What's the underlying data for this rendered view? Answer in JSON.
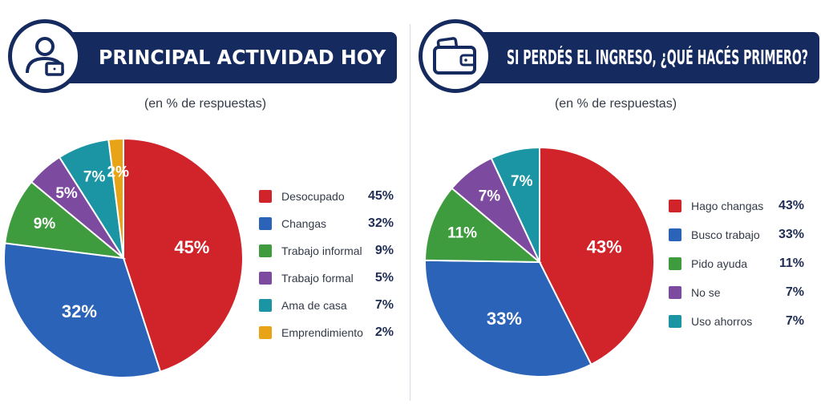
{
  "chart_data": [
    {
      "type": "pie",
      "title": "PRINCIPAL ACTIVIDAD HOY",
      "subtitle": "(en % de respuestas)",
      "icon": "person-laptop-icon",
      "categories": [
        "Desocupado",
        "Changas",
        "Trabajo informal",
        "Trabajo formal",
        "Ama de casa",
        "Emprendimiento"
      ],
      "values": [
        45,
        32,
        9,
        5,
        7,
        2
      ],
      "value_labels": [
        "45%",
        "32%",
        "9%",
        "5%",
        "7%",
        "2%"
      ],
      "colors": [
        "#d0232a",
        "#2b63b8",
        "#3e9b3e",
        "#7c4a9e",
        "#1b95a3",
        "#e8a317"
      ],
      "legend_position": "right"
    },
    {
      "type": "pie",
      "title": "SI PERDÉS EL INGRESO, ¿QUÉ HACÉS PRIMERO?",
      "subtitle": "(en % de respuestas)",
      "icon": "wallet-icon",
      "categories": [
        "Hago changas",
        "Busco trabajo",
        "Pido ayuda",
        "No se",
        "Uso ahorros"
      ],
      "values": [
        43,
        33,
        11,
        7,
        7
      ],
      "value_labels": [
        "43%",
        "33%",
        "11%",
        "7%",
        "7%"
      ],
      "colors": [
        "#d0232a",
        "#2b63b8",
        "#3e9b3e",
        "#7c4a9e",
        "#1b95a3"
      ],
      "legend_position": "right"
    }
  ],
  "theme": {
    "header_color": "#152a5e"
  }
}
